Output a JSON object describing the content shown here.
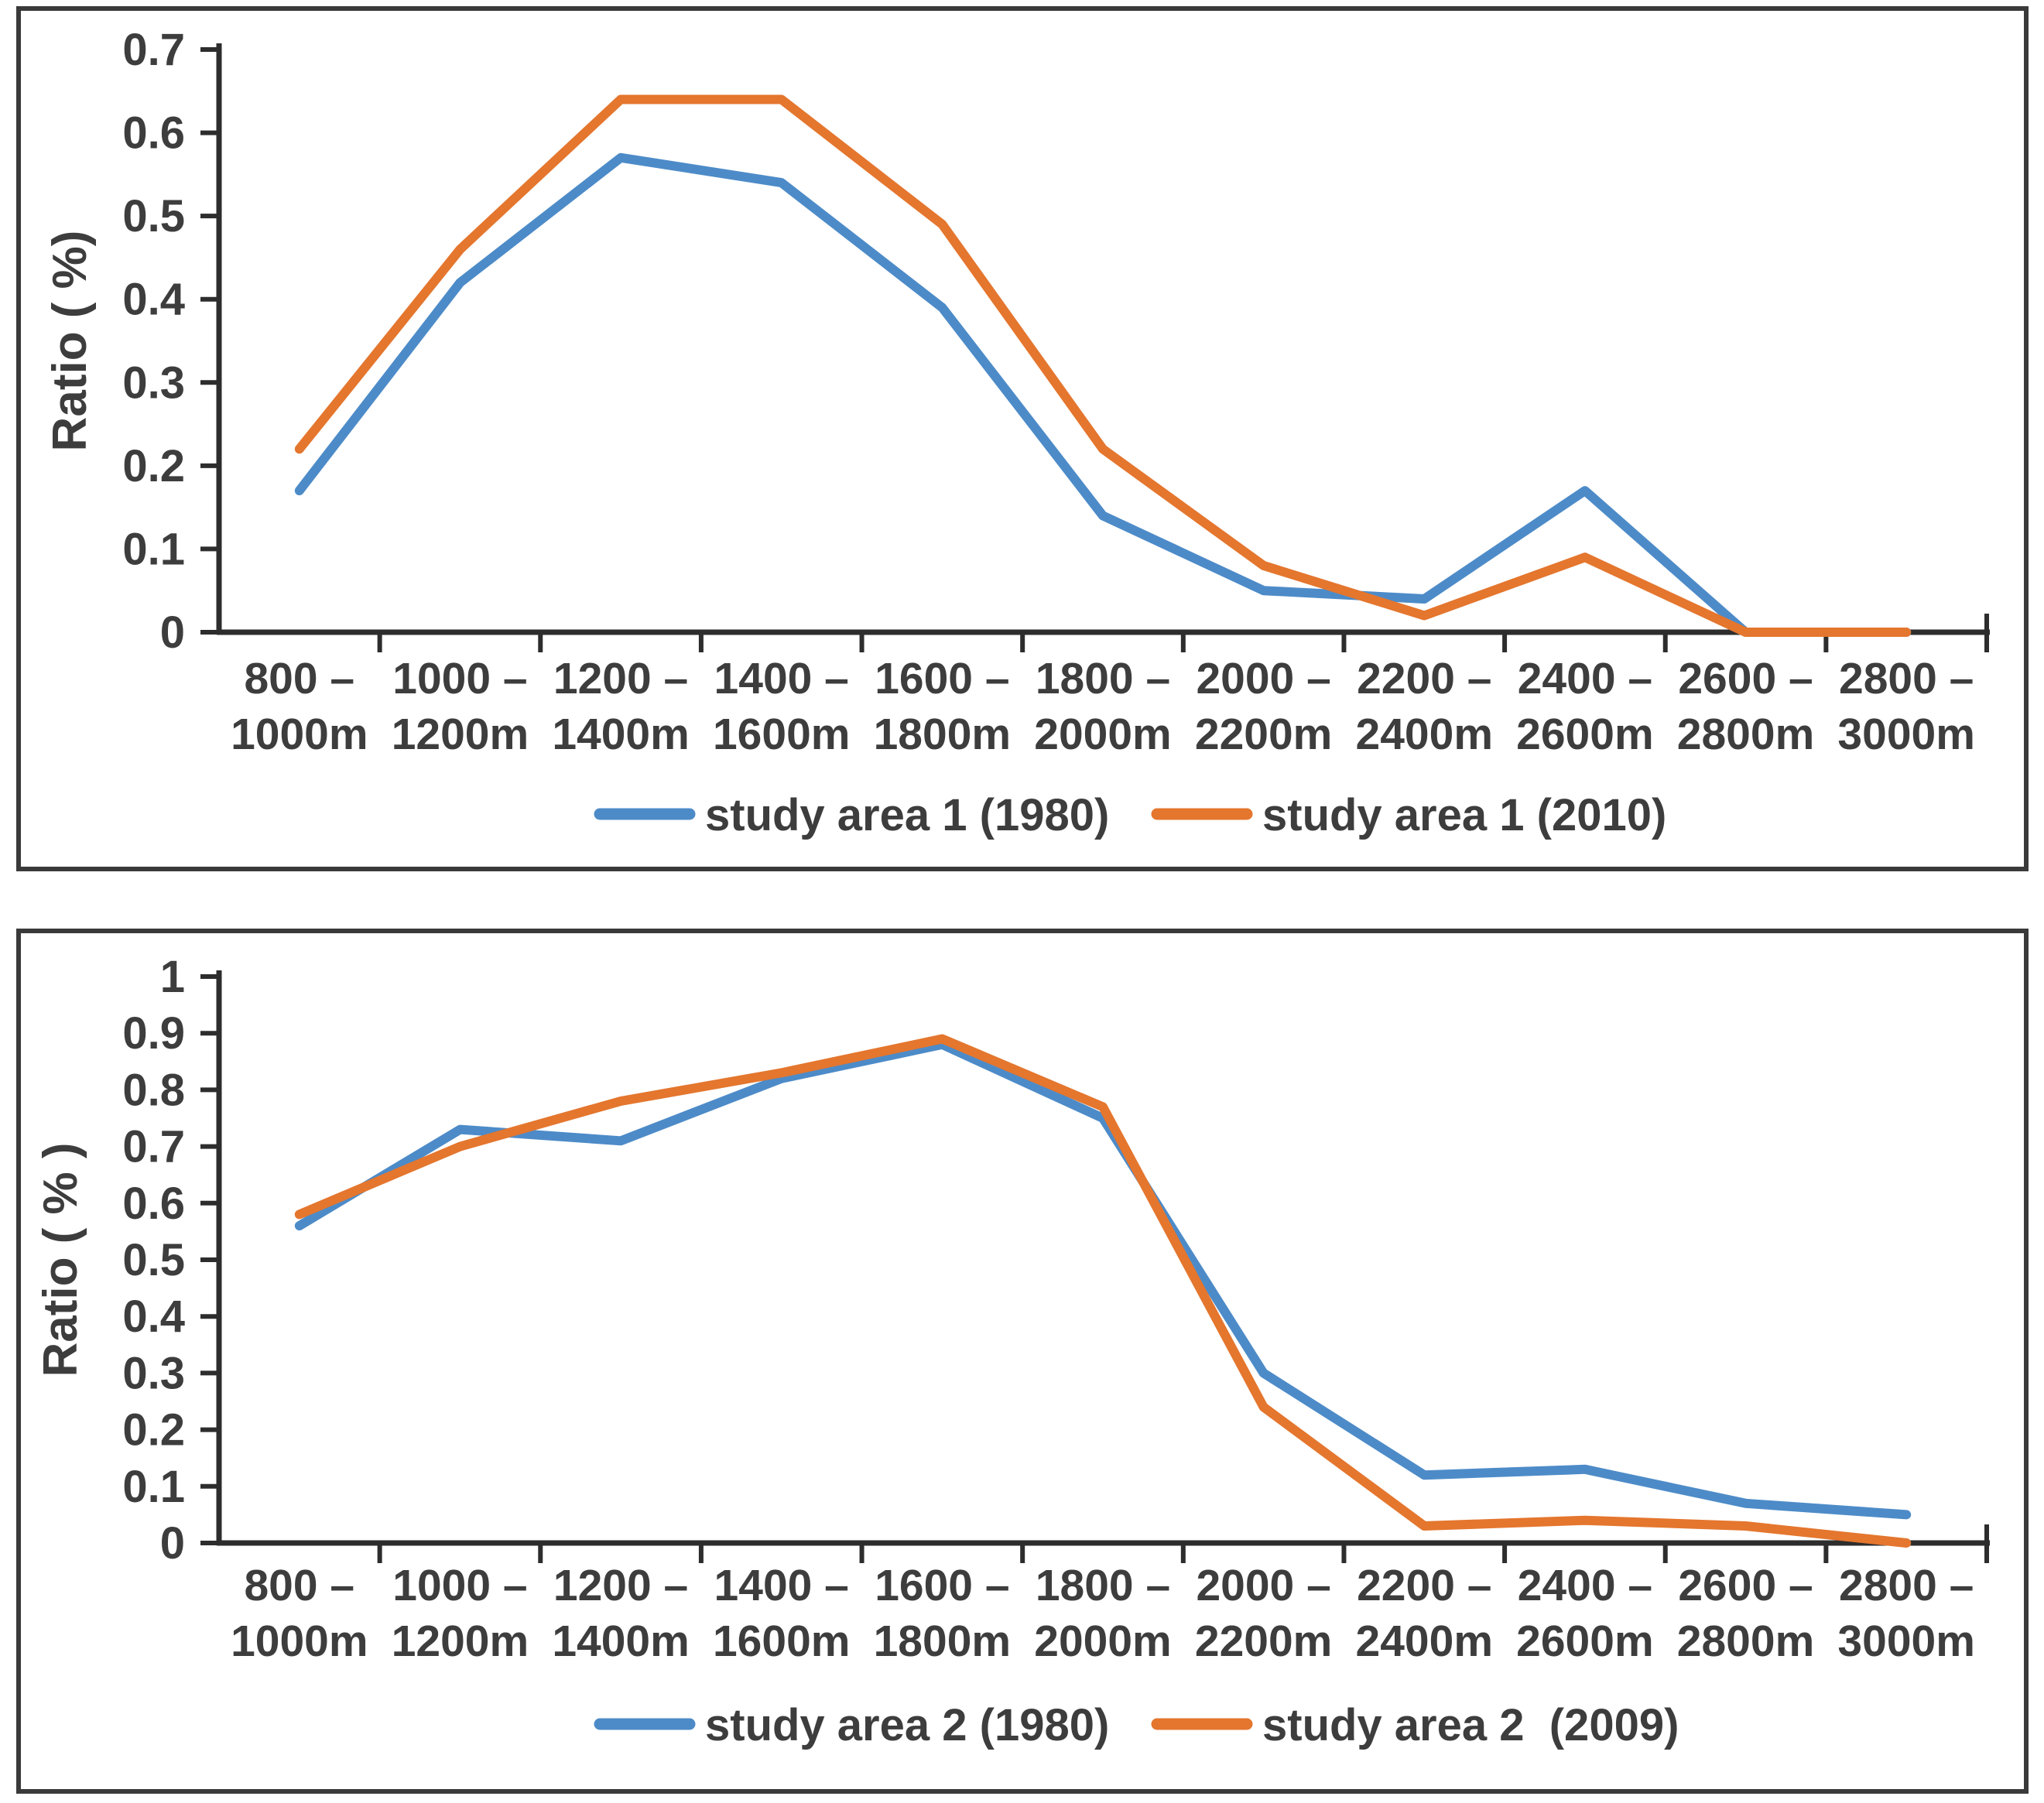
{
  "figure": {
    "background": "#ffffff",
    "panel_border_color": "#3a3a3a",
    "axis_color": "#2d2d2d",
    "text_color": "#3d3d3d"
  },
  "chart_data": [
    {
      "type": "line",
      "panel": "top",
      "title": "",
      "xlabel": "",
      "ylabel": "Ratio ( %)",
      "ylim": [
        0,
        0.7
      ],
      "ytick_labels": [
        "0.7",
        "0.6",
        "0.5",
        "0.4",
        "0.3",
        "0.2",
        "0.1",
        "0"
      ],
      "grid": false,
      "legend_position": "bottom",
      "categories_line1": [
        "800 –",
        "1000 –",
        "1200 –",
        "1400 –",
        "1600 –",
        "1800 –",
        "2000 –",
        "2200 –",
        "2400 –",
        "2600 –",
        "2800 –"
      ],
      "categories_line2": [
        "1000m",
        "1200m",
        "1400m",
        "1600m",
        "1800m",
        "2000m",
        "2200m",
        "2400m",
        "2600m",
        "2800m",
        "3000m"
      ],
      "series": [
        {
          "name": "study area 1 (1980)",
          "color": "#4d8bc8",
          "values": [
            0.17,
            0.42,
            0.57,
            0.54,
            0.39,
            0.14,
            0.05,
            0.04,
            0.17,
            0.0,
            0.0
          ]
        },
        {
          "name": "study area 1 (2010)",
          "color": "#e4762e",
          "values": [
            0.22,
            0.46,
            0.64,
            0.64,
            0.49,
            0.22,
            0.08,
            0.02,
            0.09,
            0.0,
            0.0
          ]
        }
      ]
    },
    {
      "type": "line",
      "panel": "bottom",
      "title": "",
      "xlabel": "",
      "ylabel": "Ratio ( % )",
      "ylim": [
        0,
        1
      ],
      "ytick_labels": [
        "1",
        "0.9",
        "0.8",
        "0.7",
        "0.6",
        "0.5",
        "0.4",
        "0.3",
        "0.2",
        "0.1",
        "0"
      ],
      "grid": false,
      "legend_position": "bottom",
      "categories_line1": [
        "800 –",
        "1000 –",
        "1200 –",
        "1400 –",
        "1600 –",
        "1800 –",
        "2000 –",
        "2200 –",
        "2400 –",
        "2600 –",
        "2800 –"
      ],
      "categories_line2": [
        "1000m",
        "1200m",
        "1400m",
        "1600m",
        "1800m",
        "2000m",
        "2200m",
        "2400m",
        "2600m",
        "2800m",
        "3000m"
      ],
      "series": [
        {
          "name": "study area 2 (1980)",
          "color": "#4d8bc8",
          "values": [
            0.56,
            0.73,
            0.71,
            0.82,
            0.88,
            0.75,
            0.3,
            0.12,
            0.13,
            0.07,
            0.05
          ]
        },
        {
          "name": "study area 2  (2009)",
          "color": "#e4762e",
          "values": [
            0.58,
            0.7,
            0.78,
            0.83,
            0.89,
            0.77,
            0.24,
            0.03,
            0.04,
            0.03,
            0.0
          ]
        }
      ]
    }
  ]
}
